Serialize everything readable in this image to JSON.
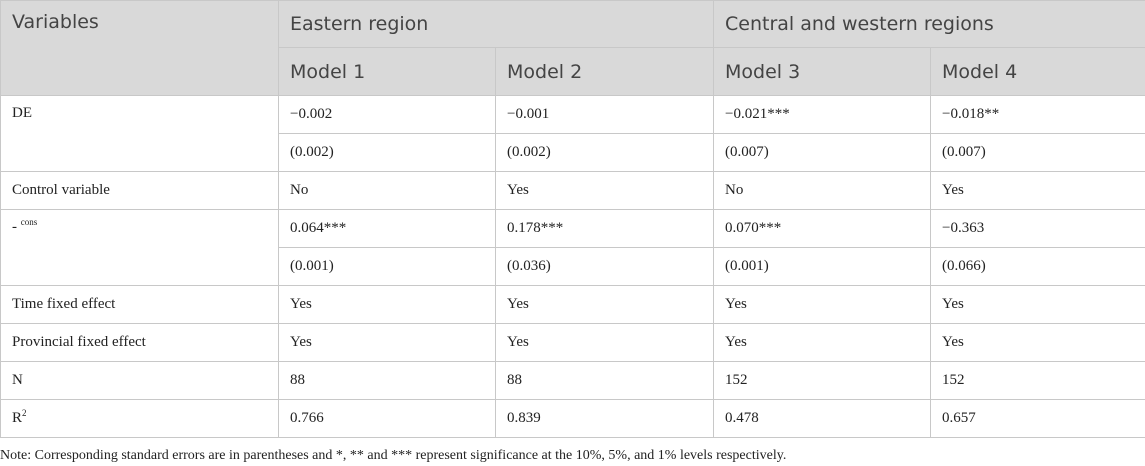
{
  "table": {
    "header": {
      "variables": "Variables",
      "group1": "Eastern region",
      "group2": "Central and western regions",
      "models": [
        "Model 1",
        "Model 2",
        "Model 3",
        "Model 4"
      ]
    },
    "rows": {
      "de": {
        "label": "DE",
        "coef": [
          "−0.002",
          "−0.001",
          "−0.021***",
          "−0.018**"
        ],
        "se": [
          "(0.002)",
          "(0.002)",
          "(0.007)",
          "(0.007)"
        ]
      },
      "control": {
        "label": "Control variable",
        "values": [
          "No",
          "Yes",
          "No",
          "Yes"
        ]
      },
      "cons": {
        "label_prefix": "-",
        "label_sup": "cons",
        "coef": [
          "0.064***",
          "0.178***",
          "0.070***",
          "−0.363"
        ],
        "se": [
          "(0.001)",
          "(0.036)",
          "(0.001)",
          "(0.066)"
        ]
      },
      "time_fe": {
        "label": "Time fixed effect",
        "values": [
          "Yes",
          "Yes",
          "Yes",
          "Yes"
        ]
      },
      "prov_fe": {
        "label": "Provincial fixed effect",
        "values": [
          "Yes",
          "Yes",
          "Yes",
          "Yes"
        ]
      },
      "n": {
        "label": "N",
        "values": [
          "88",
          "88",
          "152",
          "152"
        ]
      },
      "r2": {
        "label": "R",
        "label_sup": "2",
        "values": [
          "0.766",
          "0.839",
          "0.478",
          "0.657"
        ]
      }
    }
  },
  "note": "Note: Corresponding standard errors are in parentheses and *, ** and *** represent significance at the 10%, 5%, and 1% levels respectively."
}
